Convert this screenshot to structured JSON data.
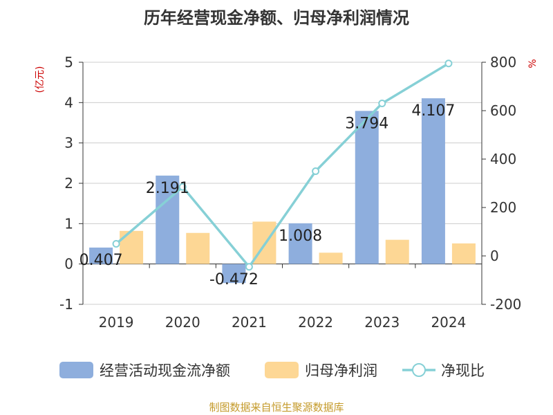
{
  "title": "历年经营现金净额、归母净利润情况",
  "source": "制图数据来自恒生聚源数据库",
  "colors": {
    "cash_flow": "#8eaedd",
    "net_profit": "#fdd795",
    "ratio_line": "#86d0d6",
    "axis_unit": "#cc0000",
    "source_text": "#c49a2a"
  },
  "chart_data": {
    "type": "bar",
    "categories": [
      "2019",
      "2020",
      "2021",
      "2022",
      "2023",
      "2024"
    ],
    "y_left": {
      "unit_label": "(亿元)",
      "ylim": [
        -1,
        5
      ],
      "ticks": [
        "-1",
        "0",
        "1",
        "2",
        "3",
        "4",
        "5"
      ]
    },
    "y_right": {
      "unit_label": "%",
      "ylim": [
        -200,
        800
      ],
      "ticks": [
        "-200",
        "0",
        "200",
        "400",
        "600",
        "800"
      ]
    },
    "grid": true,
    "legend_position": "bottom",
    "series": [
      {
        "name": "经营活动现金流净额",
        "type": "bar",
        "axis": "left",
        "values": [
          0.407,
          2.191,
          -0.472,
          1.008,
          3.794,
          4.107
        ],
        "labels": [
          "0.407",
          "2.191",
          "-0.472",
          "1.008",
          "3.794",
          "4.107"
        ]
      },
      {
        "name": "归母净利润",
        "type": "bar",
        "axis": "left",
        "values": [
          0.82,
          0.77,
          1.05,
          0.28,
          0.6,
          0.51
        ]
      },
      {
        "name": "净现比",
        "type": "line",
        "axis": "right",
        "values": [
          50,
          285,
          -45,
          350,
          630,
          795
        ]
      }
    ]
  }
}
